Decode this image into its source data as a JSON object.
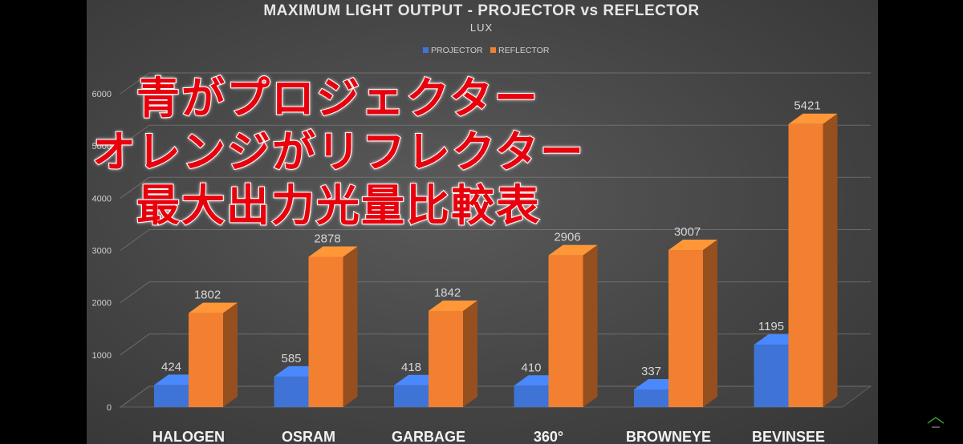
{
  "chart_data": {
    "type": "bar",
    "title": "MAXIMUM LIGHT OUTPUT - PROJECTOR vs REFLECTOR",
    "subtitle": "LUX",
    "categories": [
      "HALOGEN",
      "OSRAM",
      "GARBAGE",
      "360°",
      "BROWNEYE",
      "BEVINSEE"
    ],
    "series": [
      {
        "name": "PROJECTOR",
        "values": [
          424,
          585,
          418,
          410,
          337,
          1195
        ],
        "color": "#3f74d6"
      },
      {
        "name": "REFLECTOR",
        "values": [
          1802,
          2878,
          1842,
          2906,
          3007,
          5421
        ],
        "color": "#f28030"
      }
    ],
    "y_ticks": [
      "0",
      "1000",
      "2000",
      "3000",
      "4000",
      "5000",
      "6000"
    ],
    "ylim": [
      0,
      6000
    ],
    "grid": true,
    "legend": "top",
    "style": "3d"
  },
  "overlay_text": [
    "青がプロジェクター",
    "オレンジがリフレクター",
    "最大出力光量比較表"
  ]
}
